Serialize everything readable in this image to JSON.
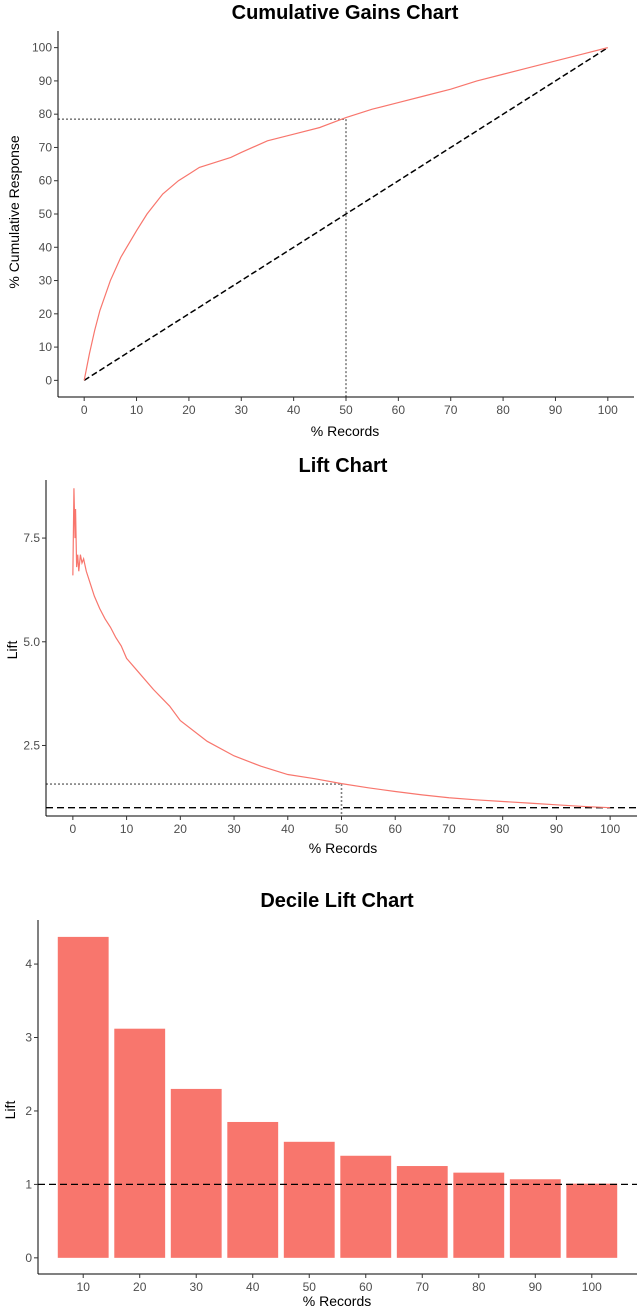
{
  "chart_data": [
    {
      "type": "line",
      "title": "Cumulative Gains Chart",
      "xlabel": "% Records",
      "ylabel": "% Cumulative Response",
      "xlim": [
        -5,
        105
      ],
      "ylim": [
        -5,
        105
      ],
      "xticks": [
        0,
        10,
        20,
        30,
        40,
        50,
        60,
        70,
        80,
        90,
        100
      ],
      "yticks": [
        0,
        10,
        20,
        30,
        40,
        50,
        60,
        70,
        80,
        90,
        100
      ],
      "grid": false,
      "colors": {
        "model": "#f8766d",
        "baseline": "#000000",
        "reference": "#808080"
      },
      "series": [
        {
          "x": [
            0,
            1,
            2,
            3,
            5,
            7,
            10,
            12,
            15,
            18,
            20,
            22,
            25,
            28,
            30,
            35,
            40,
            45,
            50,
            55,
            60,
            65,
            70,
            75,
            80,
            85,
            90,
            95,
            100
          ],
          "y": [
            0,
            8,
            15,
            21,
            30,
            37,
            45,
            50,
            56,
            60,
            62,
            64,
            65.5,
            67,
            68.5,
            72,
            74,
            76,
            79,
            81.5,
            83.5,
            85.5,
            87.5,
            90,
            92,
            94,
            96,
            98,
            100
          ]
        },
        {
          "x": [
            0,
            100
          ],
          "y": [
            0,
            100
          ]
        }
      ],
      "reference_point": {
        "x": 50,
        "y": 78.5
      }
    },
    {
      "type": "line",
      "title": "Lift Chart",
      "xlabel": "% Records",
      "ylabel": "Lift",
      "xlim": [
        -5,
        105
      ],
      "ylim": [
        0.8,
        8.9
      ],
      "xticks": [
        0,
        10,
        20,
        30,
        40,
        50,
        60,
        70,
        80,
        90,
        100
      ],
      "yticks": [
        2.5,
        5.0,
        7.5
      ],
      "ytick_labels": [
        "2.5",
        "5.0",
        "7.5"
      ],
      "grid": false,
      "colors": {
        "model": "#f8766d",
        "baseline": "#000000",
        "reference": "#808080"
      },
      "baseline": 1,
      "series": [
        {
          "x": [
            0,
            0.2,
            0.4,
            0.5,
            0.7,
            0.9,
            1.1,
            1.4,
            1.7,
            2,
            2.5,
            3,
            4,
            5,
            6,
            7,
            8,
            9,
            10,
            12,
            15,
            18,
            20,
            25,
            30,
            35,
            40,
            45,
            50,
            55,
            60,
            65,
            70,
            75,
            80,
            85,
            90,
            95,
            100
          ],
          "y": [
            6.6,
            8.7,
            7.5,
            8.2,
            6.8,
            7.1,
            6.7,
            7.1,
            6.9,
            7.0,
            6.7,
            6.5,
            6.1,
            5.8,
            5.55,
            5.35,
            5.1,
            4.9,
            4.6,
            4.3,
            3.85,
            3.45,
            3.1,
            2.6,
            2.25,
            2.0,
            1.8,
            1.7,
            1.58,
            1.48,
            1.39,
            1.31,
            1.24,
            1.19,
            1.15,
            1.11,
            1.07,
            1.03,
            1.0
          ]
        }
      ],
      "reference_point": {
        "x": 50,
        "y": 1.57
      }
    },
    {
      "type": "bar",
      "title": "Decile Lift Chart",
      "xlabel": "% Records",
      "ylabel": "Lift",
      "categories": [
        "10",
        "20",
        "30",
        "40",
        "50",
        "60",
        "70",
        "80",
        "90",
        "100"
      ],
      "values": [
        4.37,
        3.12,
        2.3,
        1.85,
        1.58,
        1.39,
        1.25,
        1.16,
        1.07,
        1.01
      ],
      "ylim": [
        -0.22,
        4.6
      ],
      "yticks": [
        0,
        1,
        2,
        3,
        4
      ],
      "grid": false,
      "baseline": 1,
      "colors": {
        "bar": "#f8766d",
        "baseline": "#000000"
      }
    }
  ]
}
